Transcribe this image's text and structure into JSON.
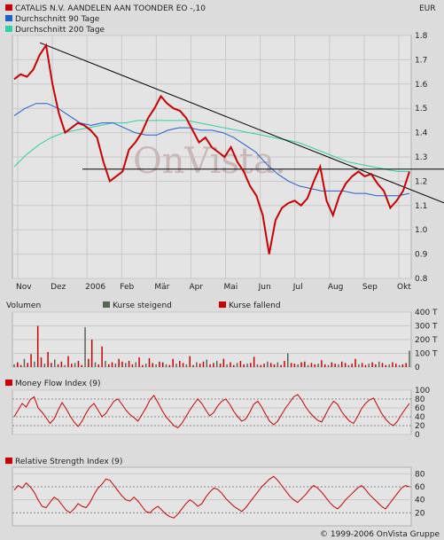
{
  "header": {
    "title": "CATALIS N.V. AANDELEN AAN TOONDER EO -,10",
    "currency": "EUR",
    "legend": [
      {
        "label": "CATALIS N.V. AANDELEN AAN TOONDER EO -,10",
        "color": "#cc0000"
      },
      {
        "label": "Durchschnitt 90 Tage",
        "color": "#1f5fd0"
      },
      {
        "label": "Durchschnitt 200 Tage",
        "color": "#2fd0a8"
      }
    ]
  },
  "watermark": "OnVista.",
  "months": [
    "Nov",
    "Dez",
    "2006",
    "Feb",
    "Mär",
    "Apr",
    "Mai",
    "Jun",
    "Jul",
    "Aug",
    "Sep",
    "Okt"
  ],
  "volume_panel": {
    "title": "Volumen",
    "legend_up": "Kurse steigend",
    "legend_down": "Kurse fallend",
    "up_color": "#556655",
    "down_color": "#cc0000",
    "ticks": [
      "400 T",
      "300 T",
      "200 T",
      "100 T",
      "0"
    ]
  },
  "mfi_panel": {
    "title": "Money Flow Index (9)",
    "ticks": [
      "100",
      "80",
      "60",
      "40",
      "20",
      "0"
    ]
  },
  "rsi_panel": {
    "title": "Relative Strength Index (9)",
    "ticks": [
      "80",
      "60",
      "40",
      "20"
    ]
  },
  "footer": "© 1999-2006 OnVista Gruppe",
  "chart_data": [
    {
      "type": "line",
      "title": "CATALIS N.V. AANDELEN AAN TOONDER EO -,10",
      "xlabel": "",
      "ylabel": "",
      "ylim": [
        0.8,
        1.8
      ],
      "yticks": [
        "0.8",
        "0.9",
        "1.0",
        "1.1",
        "1.2",
        "1.3",
        "1.4",
        "1.5",
        "1.6",
        "1.7",
        "1.8"
      ],
      "grid": true,
      "series": [
        {
          "name": "CATALIS N.V. AANDELEN AAN TOONDER EO -,10",
          "color": "#cc0000",
          "values": [
            1.62,
            1.64,
            1.63,
            1.66,
            1.72,
            1.76,
            1.6,
            1.48,
            1.4,
            1.42,
            1.44,
            1.43,
            1.41,
            1.38,
            1.28,
            1.2,
            1.22,
            1.24,
            1.33,
            1.36,
            1.4,
            1.46,
            1.5,
            1.55,
            1.52,
            1.5,
            1.49,
            1.46,
            1.41,
            1.36,
            1.38,
            1.34,
            1.32,
            1.3,
            1.34,
            1.28,
            1.24,
            1.18,
            1.14,
            1.06,
            0.9,
            1.04,
            1.09,
            1.11,
            1.12,
            1.1,
            1.13,
            1.2,
            1.26,
            1.12,
            1.06,
            1.14,
            1.19,
            1.22,
            1.24,
            1.22,
            1.23,
            1.19,
            1.16,
            1.09,
            1.12,
            1.16,
            1.24
          ]
        },
        {
          "name": "Durchschnitt 90 Tage",
          "color": "#1f5fd0",
          "values": [
            1.47,
            1.5,
            1.52,
            1.52,
            1.5,
            1.47,
            1.44,
            1.43,
            1.44,
            1.44,
            1.42,
            1.4,
            1.39,
            1.39,
            1.41,
            1.42,
            1.42,
            1.41,
            1.41,
            1.4,
            1.38,
            1.35,
            1.32,
            1.27,
            1.23,
            1.2,
            1.18,
            1.17,
            1.16,
            1.16,
            1.16,
            1.15,
            1.15,
            1.14,
            1.14,
            1.14,
            1.15
          ]
        },
        {
          "name": "Durchschnitt 200 Tage",
          "color": "#2fd0a8",
          "values": [
            1.26,
            1.31,
            1.35,
            1.38,
            1.4,
            1.41,
            1.42,
            1.43,
            1.44,
            1.44,
            1.45,
            1.45,
            1.45,
            1.45,
            1.45,
            1.44,
            1.43,
            1.42,
            1.41,
            1.4,
            1.39,
            1.38,
            1.37,
            1.36,
            1.34,
            1.32,
            1.3,
            1.28,
            1.27,
            1.26,
            1.25,
            1.24,
            1.24
          ]
        }
      ],
      "trendlines": [
        {
          "from_value": 1.77,
          "to_value": 1.14,
          "color": "#000000"
        },
        {
          "from_value": 1.25,
          "to_value": 1.25,
          "color": "#000000"
        }
      ]
    },
    {
      "type": "bar",
      "title": "Volumen",
      "ylabel": "",
      "ylim": [
        0,
        400
      ],
      "unit": "T",
      "values": [
        20,
        35,
        15,
        60,
        30,
        95,
        40,
        300,
        70,
        25,
        110,
        30,
        55,
        20,
        40,
        15,
        80,
        25,
        30,
        45,
        15,
        290,
        60,
        200,
        35,
        20,
        150,
        45,
        20,
        35,
        25,
        60,
        40,
        30,
        45,
        20,
        35,
        70,
        15,
        25,
        65,
        30,
        20,
        40,
        35,
        20,
        15,
        60,
        25,
        45,
        30,
        20,
        80,
        15,
        35,
        25,
        40,
        55,
        20,
        30,
        45,
        25,
        60,
        20,
        35,
        15,
        30,
        45,
        20,
        25,
        30,
        75,
        20,
        15,
        25,
        40,
        30,
        20,
        35,
        15,
        45,
        100,
        30,
        25,
        20,
        35,
        40,
        15,
        30,
        20,
        25,
        50,
        20,
        15,
        35,
        25,
        20,
        40,
        30,
        15,
        25,
        60,
        20,
        30,
        15,
        25,
        35,
        20,
        40,
        30,
        15,
        20,
        35,
        25,
        15,
        20,
        30,
        120
      ]
    },
    {
      "type": "line",
      "title": "Money Flow Index (9)",
      "ylim": [
        0,
        100
      ],
      "series": [
        {
          "name": "Money Flow Index (9)",
          "color": "#cc0000",
          "values": [
            40,
            55,
            70,
            62,
            78,
            85,
            60,
            50,
            38,
            25,
            35,
            55,
            72,
            58,
            42,
            28,
            18,
            30,
            48,
            62,
            70,
            55,
            40,
            48,
            62,
            75,
            80,
            68,
            55,
            45,
            38,
            30,
            45,
            60,
            78,
            88,
            72,
            55,
            40,
            30,
            20,
            15,
            25,
            40,
            55,
            68,
            80,
            70,
            55,
            42,
            50,
            65,
            75,
            80,
            68,
            52,
            40,
            30,
            35,
            50,
            68,
            75,
            62,
            45,
            30,
            22,
            30,
            45,
            60,
            72,
            85,
            90,
            78,
            62,
            50,
            40,
            32,
            28,
            45,
            62,
            75,
            68,
            52,
            40,
            30,
            25,
            40,
            58,
            70,
            78,
            82,
            65,
            48,
            35,
            25,
            20,
            30,
            45,
            58,
            70
          ]
        }
      ]
    },
    {
      "type": "line",
      "title": "Relative Strength Index (9)",
      "ylim": [
        0,
        80
      ],
      "series": [
        {
          "name": "Relative Strength Index (9)",
          "color": "#cc0000",
          "values": [
            55,
            62,
            58,
            66,
            60,
            52,
            40,
            30,
            28,
            36,
            44,
            40,
            32,
            24,
            20,
            26,
            34,
            30,
            28,
            36,
            48,
            58,
            64,
            72,
            70,
            62,
            54,
            46,
            40,
            38,
            44,
            38,
            30,
            22,
            20,
            26,
            30,
            24,
            18,
            14,
            12,
            18,
            26,
            34,
            40,
            36,
            30,
            34,
            44,
            52,
            58,
            56,
            50,
            42,
            36,
            30,
            26,
            22,
            28,
            36,
            44,
            52,
            60,
            66,
            72,
            76,
            70,
            62,
            54,
            46,
            40,
            36,
            42,
            48,
            56,
            62,
            58,
            52,
            44,
            36,
            30,
            26,
            32,
            40,
            46,
            52,
            58,
            62,
            56,
            48,
            42,
            36,
            30,
            26,
            34,
            42,
            50,
            58,
            62,
            60
          ]
        }
      ]
    }
  ]
}
